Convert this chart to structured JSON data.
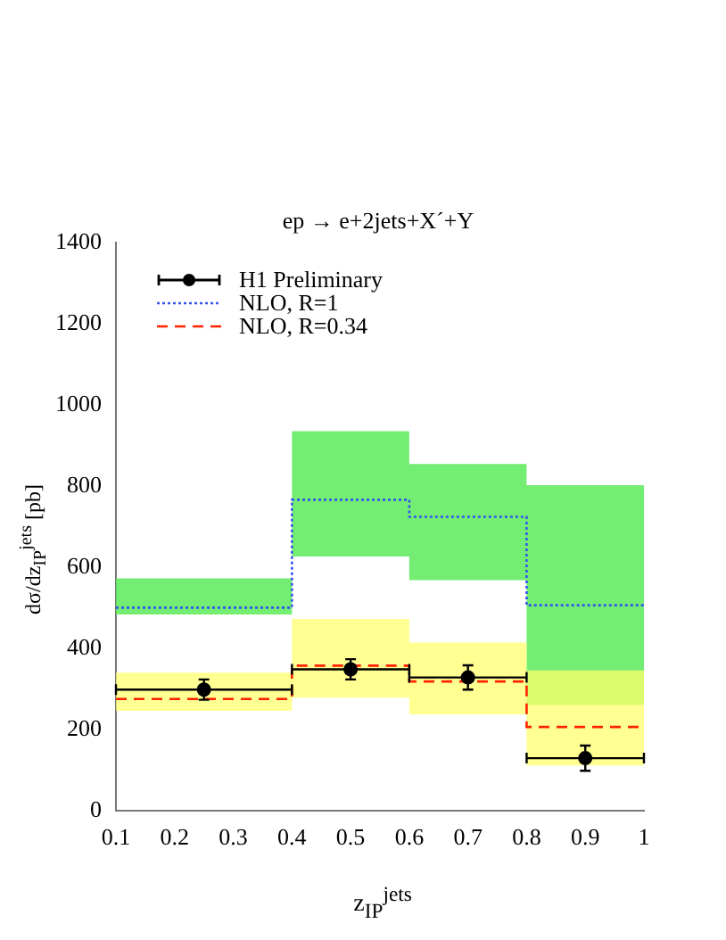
{
  "chart_data": {
    "type": "step",
    "title": "ep → e+2jets+X´+Y",
    "xlabel": "z$_{IP}$$^{jets}$",
    "ylabel": "dσ/dz$_{IP}$$^{jets}$ [pb]",
    "xlim": [
      0.1,
      1
    ],
    "xticks": [
      0.1,
      0.2,
      0.3,
      0.4,
      0.5,
      0.6,
      0.7,
      0.8,
      0.9,
      1
    ],
    "ylim": [
      0,
      1400
    ],
    "yticks": [
      0,
      200,
      400,
      600,
      800,
      1000,
      1200,
      1400
    ],
    "grid": false,
    "legend": "top left",
    "series": [
      {
        "name": "H1 Preliminary",
        "type": "scatter",
        "color": "#000000",
        "marker": "circle",
        "x": [
          0.25,
          0.5,
          0.7,
          0.9
        ],
        "values": [
          298,
          348,
          328,
          129
        ],
        "errors": [
          25,
          25,
          30,
          31
        ],
        "xerrors": [
          0.15,
          0.1,
          0.1,
          0.1
        ]
      },
      {
        "name": "NLO, R=1",
        "color": "#3355ee",
        "line_style": "dotted",
        "x": [
          0.1,
          0.4,
          0.6,
          0.8,
          1
        ],
        "values": [
          500,
          766,
          724,
          506,
          506
        ],
        "lower": [
          483,
          626,
          568,
          260,
          260
        ],
        "upper": [
          572,
          935,
          854,
          802,
          802
        ]
      },
      {
        "name": "NLO, R=0.34",
        "color": "#ff2200",
        "line_style": "dashed",
        "x": [
          0.1,
          0.4,
          0.6,
          0.8,
          1
        ],
        "values": [
          275,
          357,
          318,
          206,
          206
        ],
        "lower": [
          246,
          278,
          237,
          111,
          111
        ],
        "upper": [
          340,
          472,
          414,
          345,
          345
        ]
      }
    ]
  }
}
